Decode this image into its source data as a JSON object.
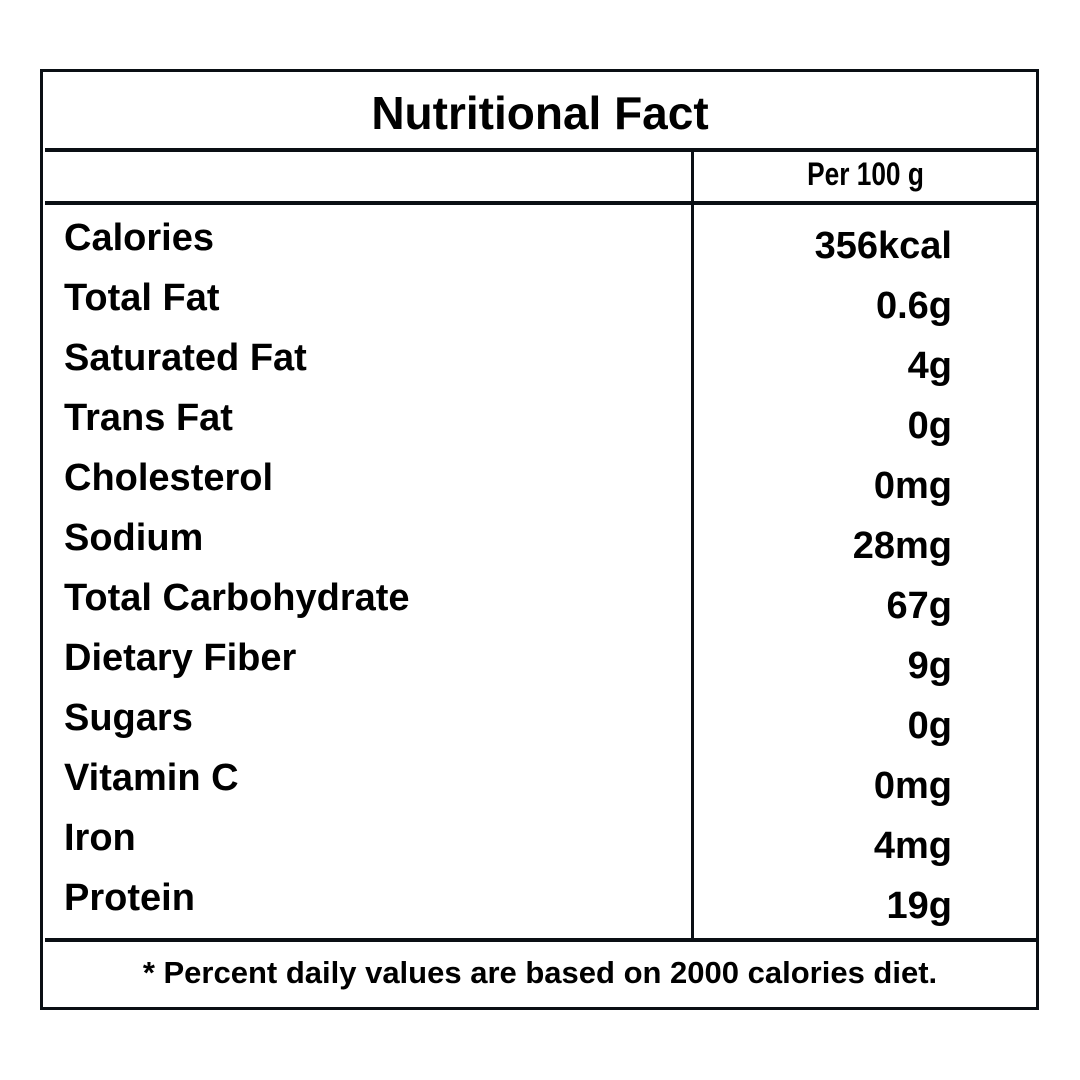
{
  "title": "Nutritional Fact",
  "column_header": "Per 100 g",
  "rows": [
    {
      "label": "Calories",
      "value": "356kcal"
    },
    {
      "label": "Total Fat",
      "value": "0.6g"
    },
    {
      "label": "Saturated Fat",
      "value": "4g"
    },
    {
      "label": "Trans Fat",
      "value": "0g"
    },
    {
      "label": "Cholesterol",
      "value": "0mg"
    },
    {
      "label": "Sodium",
      "value": "28mg"
    },
    {
      "label": "Total Carbohydrate",
      "value": "67g"
    },
    {
      "label": "Dietary Fiber",
      "value": "9g"
    },
    {
      "label": "Sugars",
      "value": "0g"
    },
    {
      "label": "Vitamin C",
      "value": "0mg"
    },
    {
      "label": "Iron",
      "value": "4mg"
    },
    {
      "label": "Protein",
      "value": "19g"
    }
  ],
  "footnote": "*  Percent daily values are based on 2000 calories diet."
}
